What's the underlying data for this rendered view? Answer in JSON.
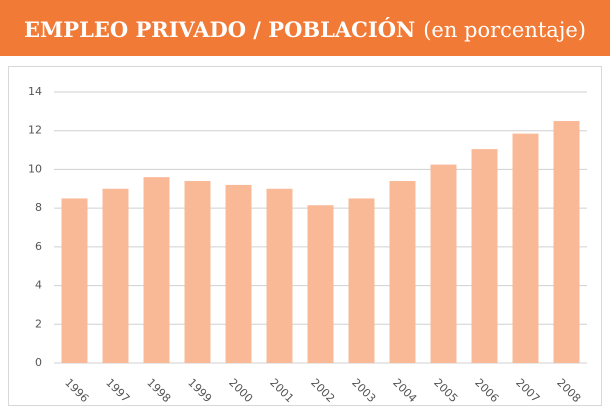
{
  "chart_data": {
    "type": "bar",
    "title": "EMPLEO PRIVADO / POBLACIÓN",
    "subtitle": "(en porcentaje)",
    "categories": [
      "1996",
      "1997",
      "1998",
      "1999",
      "2000",
      "2001",
      "2002",
      "2003",
      "2004",
      "2005",
      "2006",
      "2007",
      "2008"
    ],
    "values": [
      8.5,
      9.0,
      9.6,
      9.4,
      9.2,
      9.0,
      8.15,
      8.5,
      9.4,
      10.25,
      11.05,
      11.85,
      12.5
    ],
    "color": "#f9b896",
    "ylim": [
      0,
      14
    ],
    "yticks": [
      0,
      2,
      4,
      6,
      8,
      10,
      12,
      14
    ],
    "grid": true
  }
}
